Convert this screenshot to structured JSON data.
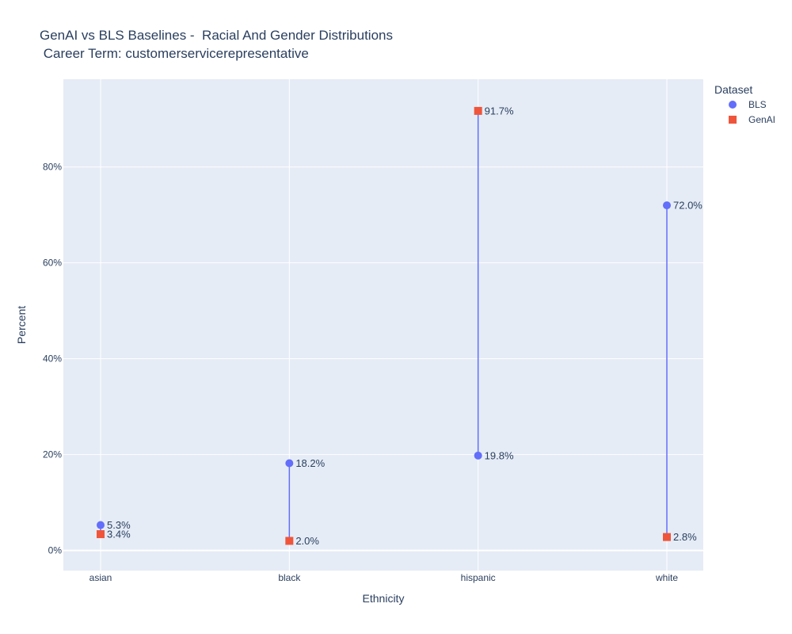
{
  "chart_data": {
    "type": "scatter",
    "title_line1": "GenAI vs BLS Baselines -  Racial And Gender Distributions",
    "title_line2": " Career Term: customerservicerepresentative",
    "xlabel": "Ethnicity",
    "ylabel": "Percent",
    "categories": [
      "asian",
      "black",
      "hispanic",
      "white"
    ],
    "y_ticks": [
      0,
      20,
      40,
      60,
      80
    ],
    "y_tick_labels": [
      "0%",
      "20%",
      "40%",
      "60%",
      "80%"
    ],
    "ylim": [
      -4.2,
      98.3
    ],
    "series": [
      {
        "name": "BLS",
        "marker": "circle",
        "color": "#636efa",
        "values": [
          5.3,
          18.2,
          19.8,
          72.0
        ],
        "labels": [
          "5.3%",
          "18.2%",
          "19.8%",
          "72.0%"
        ]
      },
      {
        "name": "GenAI",
        "marker": "square",
        "color": "#ef553b",
        "values": [
          3.4,
          2.0,
          91.7,
          2.8
        ],
        "labels": [
          "3.4%",
          "2.0%",
          "91.7%",
          "2.8%"
        ]
      }
    ],
    "connector_color": "#636efa",
    "legend_title": "Dataset",
    "legend_position": "top-right",
    "plot_background": "#e5ecf6",
    "grid": true
  }
}
